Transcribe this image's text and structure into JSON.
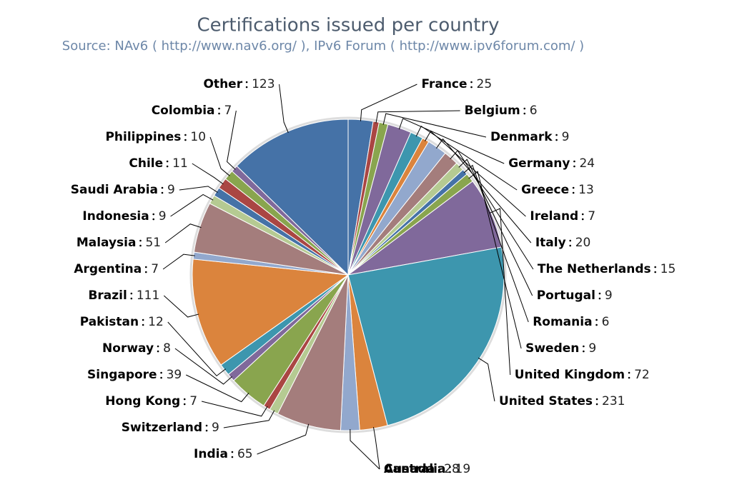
{
  "chart_data": {
    "type": "pie",
    "title": "Certifications issued per country",
    "subtitle": "Source: NAv6 ( http://www.nav6.org/ ), IPv6 Forum ( http://www.ipv6forum.com/ )",
    "categories": [
      "France",
      "Belgium",
      "Denmark",
      "Germany",
      "Greece",
      "Ireland",
      "Italy",
      "The Netherlands",
      "Portugal",
      "Romania",
      "Sweden",
      "United Kingdom",
      "United States",
      "Canada",
      "Australia",
      "India",
      "Switzerland",
      "Hong Kong",
      "Singapore",
      "Norway",
      "Pakistan",
      "Brazil",
      "Argentina",
      "Malaysia",
      "Indonesia",
      "Saudi Arabia",
      "Chile",
      "Philippines",
      "Colombia",
      "Other"
    ],
    "values": [
      25,
      6,
      9,
      24,
      13,
      7,
      20,
      15,
      9,
      6,
      9,
      72,
      231,
      28,
      19,
      65,
      9,
      7,
      39,
      8,
      12,
      111,
      7,
      51,
      9,
      9,
      11,
      10,
      7,
      123
    ],
    "colors": [
      "#4572A7",
      "#AA4643",
      "#89A54E",
      "#80699B",
      "#3D96AE",
      "#DB843D",
      "#92A8CD",
      "#A47D7C",
      "#B5CA92",
      "#4572A7",
      "#89A54E",
      "#80699B",
      "#3D96AE",
      "#DB843D",
      "#92A8CD",
      "#A47D7C",
      "#B5CA92",
      "#AA4643",
      "#89A54E",
      "#80699B",
      "#3D96AE",
      "#DB843D",
      "#92A8CD",
      "#A47D7C",
      "#B5CA92",
      "#4572A7",
      "#AA4643",
      "#89A54E",
      "#80699B",
      "#4572A7"
    ]
  }
}
